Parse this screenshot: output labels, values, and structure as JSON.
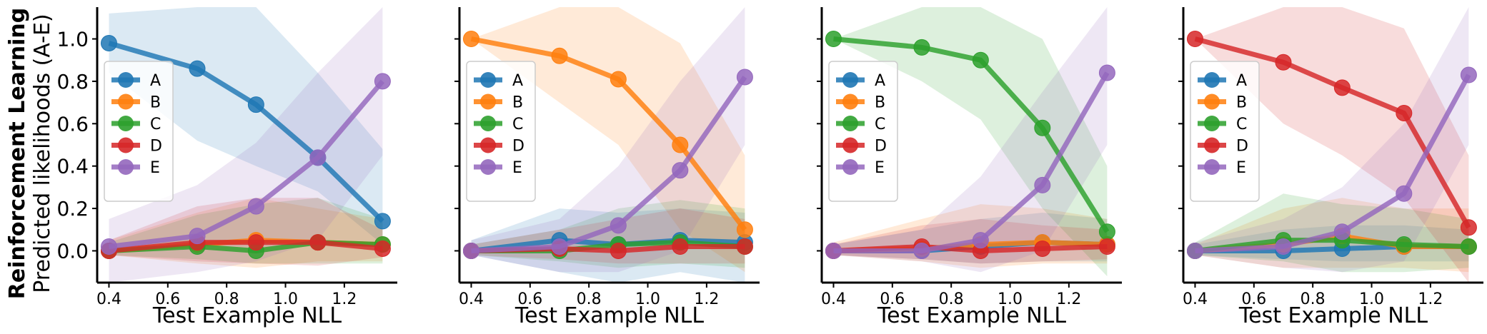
{
  "figure": {
    "ylabel_bold": "Reinforcement Learning",
    "ylabel": "Predicted likelihoods (A-E)"
  },
  "colors": {
    "A": "#1f77b4",
    "B": "#ff7f0e",
    "C": "#2ca02c",
    "D": "#d62728",
    "E": "#9467bd"
  },
  "chart_data": [
    {
      "type": "line",
      "xlabel": "Test Example NLL",
      "xlim": [
        0.36,
        1.38
      ],
      "ylim": [
        -0.15,
        1.15
      ],
      "xticks": [
        "0.4",
        "0.6",
        "0.8",
        "1.0",
        "1.2"
      ],
      "yticks": [
        "0.0",
        "0.2",
        "0.4",
        "0.6",
        "0.8",
        "1.0"
      ],
      "legend": "center-left",
      "x": [
        0.4,
        0.7,
        0.9,
        1.11,
        1.33
      ],
      "series": [
        {
          "name": "A",
          "values": [
            0.98,
            0.86,
            0.69,
            0.44,
            0.14
          ],
          "lower": [
            0.84,
            0.52,
            0.4,
            0.28,
            0.03
          ],
          "upper": [
            1.12,
            1.15,
            1.15,
            0.84,
            0.48
          ]
        },
        {
          "name": "B",
          "values": [
            0.0,
            0.03,
            0.05,
            0.04,
            0.03
          ],
          "lower": [
            -0.02,
            -0.06,
            -0.08,
            -0.05,
            -0.05
          ],
          "upper": [
            0.05,
            0.18,
            0.25,
            0.2,
            0.15
          ]
        },
        {
          "name": "C",
          "values": [
            0.0,
            0.02,
            0.0,
            0.04,
            0.03
          ],
          "lower": [
            -0.02,
            -0.04,
            -0.06,
            -0.06,
            -0.06
          ],
          "upper": [
            0.04,
            0.17,
            0.22,
            0.25,
            0.15
          ]
        },
        {
          "name": "D",
          "values": [
            0.0,
            0.04,
            0.04,
            0.04,
            0.01
          ],
          "lower": [
            -0.02,
            -0.05,
            -0.06,
            -0.07,
            -0.03
          ],
          "upper": [
            0.05,
            0.21,
            0.25,
            0.25,
            0.1
          ]
        },
        {
          "name": "E",
          "values": [
            0.02,
            0.07,
            0.21,
            0.44,
            0.8
          ],
          "lower": [
            -0.15,
            -0.1,
            -0.05,
            0.05,
            0.45
          ],
          "upper": [
            0.15,
            0.31,
            0.51,
            0.84,
            1.15
          ]
        }
      ]
    },
    {
      "type": "line",
      "xlabel": "Test Example NLL",
      "xlim": [
        0.36,
        1.38
      ],
      "ylim": [
        -0.15,
        1.15
      ],
      "xticks": [
        "0.4",
        "0.6",
        "0.8",
        "1.0",
        "1.2"
      ],
      "legend": "center-left",
      "x": [
        0.4,
        0.7,
        0.9,
        1.11,
        1.33
      ],
      "series": [
        {
          "name": "A",
          "values": [
            0.0,
            0.05,
            0.03,
            0.05,
            0.04
          ],
          "lower": [
            -0.02,
            -0.1,
            -0.15,
            -0.1,
            -0.15
          ],
          "upper": [
            0.05,
            0.2,
            0.18,
            0.2,
            0.18
          ]
        },
        {
          "name": "B",
          "values": [
            1.0,
            0.92,
            0.81,
            0.5,
            0.1
          ],
          "lower": [
            1.0,
            0.7,
            0.5,
            0.1,
            -0.1
          ],
          "upper": [
            1.0,
            1.15,
            1.15,
            0.98,
            0.45
          ]
        },
        {
          "name": "C",
          "values": [
            0.0,
            0.0,
            0.03,
            0.04,
            0.02
          ],
          "lower": [
            -0.02,
            -0.05,
            -0.08,
            -0.06,
            -0.08
          ],
          "upper": [
            0.03,
            0.1,
            0.2,
            0.24,
            0.2
          ]
        },
        {
          "name": "D",
          "values": [
            0.0,
            0.01,
            0.0,
            0.02,
            0.02
          ],
          "lower": [
            -0.02,
            -0.04,
            -0.06,
            -0.06,
            -0.06
          ],
          "upper": [
            0.03,
            0.1,
            0.15,
            0.2,
            0.15
          ]
        },
        {
          "name": "E",
          "values": [
            0.0,
            0.02,
            0.12,
            0.38,
            0.82
          ],
          "lower": [
            -0.02,
            -0.1,
            -0.1,
            0.0,
            0.5
          ],
          "upper": [
            0.05,
            0.15,
            0.4,
            0.8,
            1.15
          ]
        }
      ]
    },
    {
      "type": "line",
      "xlabel": "Test Example NLL",
      "xlim": [
        0.36,
        1.38
      ],
      "ylim": [
        -0.15,
        1.15
      ],
      "xticks": [
        "0.4",
        "0.6",
        "0.8",
        "1.0",
        "1.2"
      ],
      "legend": "center-left",
      "x": [
        0.4,
        0.7,
        0.9,
        1.11,
        1.33
      ],
      "series": [
        {
          "name": "A",
          "values": [
            0.0,
            0.0,
            0.02,
            0.04,
            0.03
          ],
          "lower": [
            -0.02,
            -0.04,
            -0.06,
            -0.05,
            -0.05
          ],
          "upper": [
            0.03,
            0.1,
            0.15,
            0.18,
            0.15
          ]
        },
        {
          "name": "B",
          "values": [
            0.0,
            0.01,
            0.03,
            0.04,
            0.03
          ],
          "lower": [
            -0.02,
            -0.05,
            -0.08,
            -0.06,
            -0.06
          ],
          "upper": [
            0.04,
            0.15,
            0.22,
            0.2,
            0.15
          ]
        },
        {
          "name": "C",
          "values": [
            1.0,
            0.96,
            0.9,
            0.58,
            0.09
          ],
          "lower": [
            1.0,
            0.8,
            0.62,
            0.2,
            -0.12
          ],
          "upper": [
            1.0,
            1.15,
            1.15,
            1.0,
            0.4
          ]
        },
        {
          "name": "D",
          "values": [
            0.0,
            0.02,
            0.0,
            0.01,
            0.02
          ],
          "lower": [
            -0.02,
            -0.04,
            -0.06,
            -0.05,
            -0.04
          ],
          "upper": [
            0.03,
            0.12,
            0.15,
            0.12,
            0.1
          ]
        },
        {
          "name": "E",
          "values": [
            0.0,
            0.0,
            0.05,
            0.31,
            0.84
          ],
          "lower": [
            -0.02,
            -0.05,
            -0.1,
            0.0,
            0.5
          ],
          "upper": [
            0.03,
            0.1,
            0.35,
            0.75,
            1.15
          ]
        }
      ]
    },
    {
      "type": "line",
      "xlabel": "Test Example NLL",
      "xlim": [
        0.36,
        1.38
      ],
      "ylim": [
        -0.15,
        1.15
      ],
      "xticks": [
        "0.4",
        "0.6",
        "0.8",
        "1.0",
        "1.2"
      ],
      "legend": "center-left",
      "x": [
        0.4,
        0.7,
        0.9,
        1.11,
        1.33
      ],
      "series": [
        {
          "name": "A",
          "values": [
            0.0,
            0.0,
            0.01,
            0.02,
            0.02
          ],
          "lower": [
            -0.02,
            -0.04,
            -0.05,
            -0.05,
            -0.05
          ],
          "upper": [
            0.03,
            0.1,
            0.12,
            0.12,
            0.1
          ]
        },
        {
          "name": "B",
          "values": [
            0.0,
            0.03,
            0.07,
            0.02,
            0.02
          ],
          "lower": [
            -0.02,
            -0.08,
            -0.08,
            -0.08,
            -0.1
          ],
          "upper": [
            0.03,
            0.2,
            0.25,
            0.2,
            0.2
          ]
        },
        {
          "name": "C",
          "values": [
            0.0,
            0.05,
            0.05,
            0.03,
            0.02
          ],
          "lower": [
            -0.02,
            -0.05,
            -0.1,
            -0.1,
            -0.08
          ],
          "upper": [
            0.04,
            0.27,
            0.22,
            0.2,
            0.15
          ]
        },
        {
          "name": "D",
          "values": [
            1.0,
            0.89,
            0.77,
            0.65,
            0.11
          ],
          "lower": [
            1.0,
            0.6,
            0.45,
            0.25,
            -0.15
          ],
          "upper": [
            1.0,
            1.15,
            1.15,
            1.05,
            0.45
          ]
        },
        {
          "name": "E",
          "values": [
            0.0,
            0.02,
            0.09,
            0.27,
            0.83
          ],
          "lower": [
            -0.02,
            -0.08,
            -0.1,
            -0.05,
            0.5
          ],
          "upper": [
            0.04,
            0.15,
            0.3,
            0.6,
            1.15
          ]
        }
      ]
    }
  ]
}
